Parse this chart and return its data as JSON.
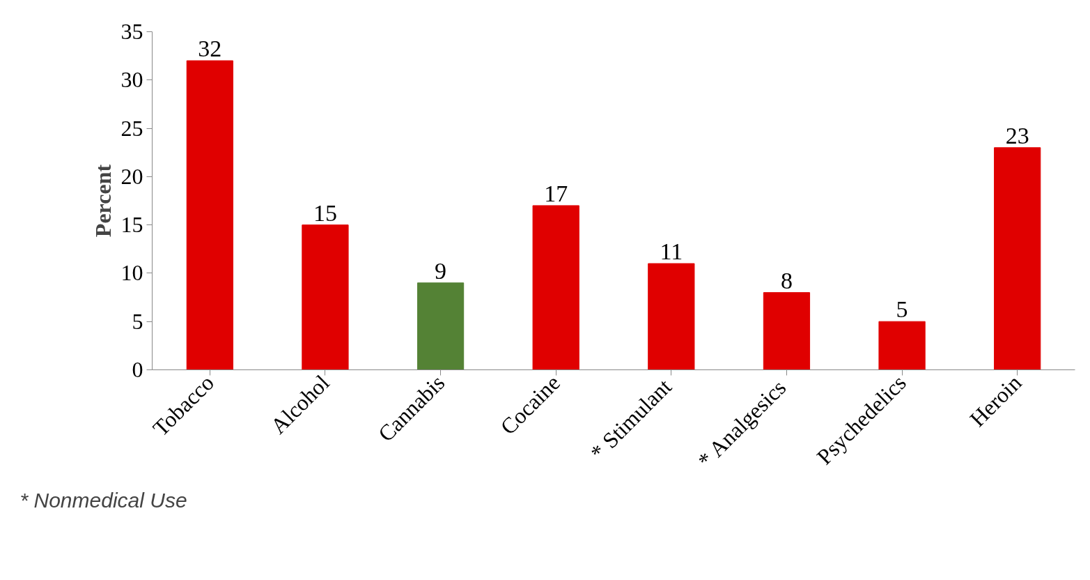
{
  "chart_data": {
    "type": "bar",
    "categories": [
      "Tobacco",
      "Alcohol",
      "Cannabis",
      "Cocaine",
      "*  Stimulant",
      "*  Analgesics",
      "Psychedelics",
      "Heroin"
    ],
    "values": [
      32,
      15,
      9,
      17,
      11,
      8,
      5,
      23
    ],
    "colors": [
      "#e00000",
      "#e00000",
      "#548235",
      "#e00000",
      "#e00000",
      "#e00000",
      "#e00000",
      "#e00000"
    ],
    "ylabel": "Percent",
    "ylim": [
      0,
      35
    ],
    "yticks": [
      0,
      5,
      10,
      15,
      20,
      25,
      30,
      35
    ],
    "data_labels": true,
    "annotations": [
      "* Nonmedical Use"
    ]
  }
}
